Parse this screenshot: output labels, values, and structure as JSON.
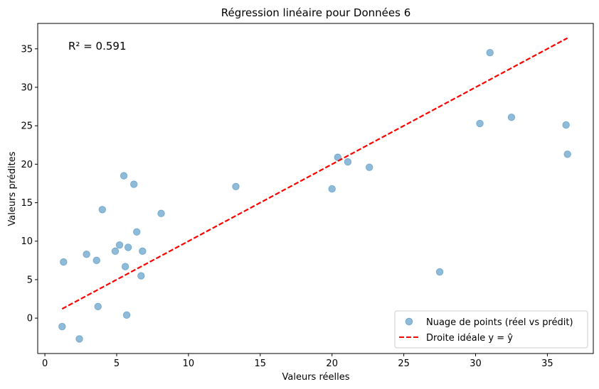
{
  "chart_data": {
    "type": "scatter",
    "title": "Régression linéaire pour Données 6",
    "xlabel": "Valeurs réelles",
    "ylabel": "Valeurs prédites",
    "xlim": [
      -0.5,
      38.2
    ],
    "ylim": [
      -4.6,
      38.3
    ],
    "xticks": [
      0,
      5,
      10,
      15,
      20,
      25,
      30,
      35
    ],
    "yticks": [
      0,
      5,
      10,
      15,
      20,
      25,
      30,
      35
    ],
    "grid": false,
    "legend_position": "lower-right",
    "annotation": "R² = 0.591",
    "series": [
      {
        "name": "Nuage de points (réel vs prédit)",
        "kind": "scatter",
        "color": "#1f77b4",
        "points": [
          {
            "x": 1.2,
            "y": -1.1
          },
          {
            "x": 1.3,
            "y": 7.3
          },
          {
            "x": 2.4,
            "y": -2.7
          },
          {
            "x": 2.9,
            "y": 8.3
          },
          {
            "x": 3.6,
            "y": 7.5
          },
          {
            "x": 3.7,
            "y": 1.5
          },
          {
            "x": 4.0,
            "y": 14.1
          },
          {
            "x": 4.9,
            "y": 8.7
          },
          {
            "x": 5.2,
            "y": 9.5
          },
          {
            "x": 5.5,
            "y": 18.5
          },
          {
            "x": 5.6,
            "y": 6.7
          },
          {
            "x": 5.7,
            "y": 0.4
          },
          {
            "x": 5.8,
            "y": 9.2
          },
          {
            "x": 6.2,
            "y": 17.4
          },
          {
            "x": 6.4,
            "y": 11.2
          },
          {
            "x": 6.7,
            "y": 5.5
          },
          {
            "x": 6.8,
            "y": 8.7
          },
          {
            "x": 8.1,
            "y": 13.6
          },
          {
            "x": 13.3,
            "y": 17.1
          },
          {
            "x": 20.0,
            "y": 16.8
          },
          {
            "x": 20.4,
            "y": 20.9
          },
          {
            "x": 21.1,
            "y": 20.3
          },
          {
            "x": 22.6,
            "y": 19.6
          },
          {
            "x": 27.5,
            "y": 6.0
          },
          {
            "x": 30.3,
            "y": 25.3
          },
          {
            "x": 31.0,
            "y": 34.5
          },
          {
            "x": 32.5,
            "y": 26.1
          },
          {
            "x": 36.3,
            "y": 25.1
          },
          {
            "x": 36.4,
            "y": 21.3
          }
        ]
      },
      {
        "name": "Droite idéale y = ŷ",
        "kind": "line",
        "style": "dashed",
        "color": "#ff0000",
        "x": [
          1.2,
          36.4
        ],
        "y": [
          1.2,
          36.4
        ]
      }
    ]
  }
}
